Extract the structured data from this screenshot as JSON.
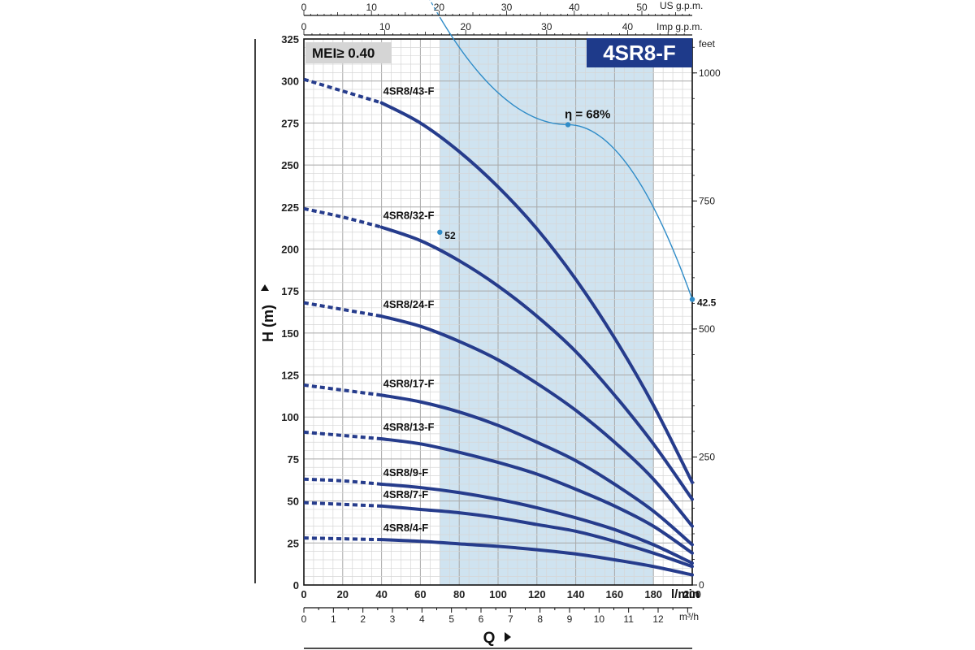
{
  "chart_data": {
    "type": "line",
    "title": "4SR8-F",
    "mei_label": "MEI≥ 0.40",
    "ylabel": "H (m)",
    "xlabel": "Q",
    "ylim": [
      0,
      325
    ],
    "xlim": [
      0,
      200
    ],
    "x_unit": "l/min",
    "x_ticks": [
      0,
      20,
      40,
      60,
      80,
      100,
      120,
      140,
      160,
      180,
      200
    ],
    "y_ticks": [
      0,
      25,
      50,
      75,
      100,
      125,
      150,
      175,
      200,
      225,
      250,
      275,
      300,
      325
    ],
    "right_axis": {
      "unit": "feet",
      "ticks": [
        0,
        250,
        500,
        750,
        1000
      ]
    },
    "bottom_axis": {
      "unit": "m³/h",
      "ticks": [
        0,
        1,
        2,
        3,
        4,
        5,
        6,
        7,
        8,
        9,
        10,
        11,
        12
      ]
    },
    "top_axis_us": {
      "unit": "US g.p.m.",
      "ticks": [
        0,
        10,
        20,
        30,
        40,
        50
      ]
    },
    "top_axis_imp": {
      "unit": "Imp g.p.m.",
      "ticks": [
        0,
        10,
        20,
        30,
        40
      ]
    },
    "operating_range": [
      70,
      180
    ],
    "series": [
      {
        "name": "4SR8/43-F",
        "x": [
          0,
          20,
          40,
          60,
          80,
          100,
          120,
          140,
          160,
          180,
          200
        ],
        "values": [
          301,
          294,
          287,
          275,
          258,
          237,
          212,
          182,
          147,
          107,
          61
        ]
      },
      {
        "name": "4SR8/32-F",
        "x": [
          0,
          20,
          40,
          60,
          80,
          100,
          120,
          140,
          160,
          180,
          200
        ],
        "values": [
          224,
          219,
          213,
          205,
          193,
          178,
          160,
          139,
          113,
          84,
          51
        ]
      },
      {
        "name": "4SR8/24-F",
        "x": [
          0,
          20,
          40,
          60,
          80,
          100,
          120,
          140,
          160,
          180,
          200
        ],
        "values": [
          168,
          164,
          160,
          154,
          145,
          134,
          120,
          104,
          85,
          63,
          35
        ]
      },
      {
        "name": "4SR8/17-F",
        "x": [
          0,
          20,
          40,
          60,
          80,
          100,
          120,
          140,
          160,
          180,
          200
        ],
        "values": [
          119,
          116,
          113,
          109,
          103,
          95,
          85,
          74,
          60,
          44,
          24
        ]
      },
      {
        "name": "4SR8/13-F",
        "x": [
          0,
          20,
          40,
          60,
          80,
          100,
          120,
          140,
          160,
          180,
          200
        ],
        "values": [
          91,
          89,
          87,
          84,
          79,
          73,
          66,
          57,
          47,
          35,
          19
        ]
      },
      {
        "name": "4SR8/9-F",
        "x": [
          0,
          20,
          40,
          60,
          80,
          100,
          120,
          140,
          160,
          180,
          200
        ],
        "values": [
          63,
          62,
          60,
          58,
          55,
          51,
          46,
          40,
          33,
          24,
          13
        ]
      },
      {
        "name": "4SR8/7-F",
        "x": [
          0,
          20,
          40,
          60,
          80,
          100,
          120,
          140,
          160,
          180,
          200
        ],
        "values": [
          49,
          48,
          47,
          45,
          43,
          40,
          36,
          32,
          26,
          19,
          11
        ]
      },
      {
        "name": "4SR8/4-F",
        "x": [
          0,
          20,
          40,
          60,
          80,
          100,
          120,
          140,
          160,
          180,
          200
        ],
        "values": [
          28,
          27.5,
          27,
          26,
          24.5,
          23,
          21,
          18.5,
          15,
          11,
          6
        ]
      }
    ],
    "efficiency": {
      "label": "η = 68%",
      "points": [
        {
          "x": 70,
          "y": 210,
          "label": "52"
        },
        {
          "x": 136,
          "y": 274,
          "label": ""
        },
        {
          "x": 200,
          "y": 170,
          "label": "42.5"
        }
      ]
    }
  }
}
